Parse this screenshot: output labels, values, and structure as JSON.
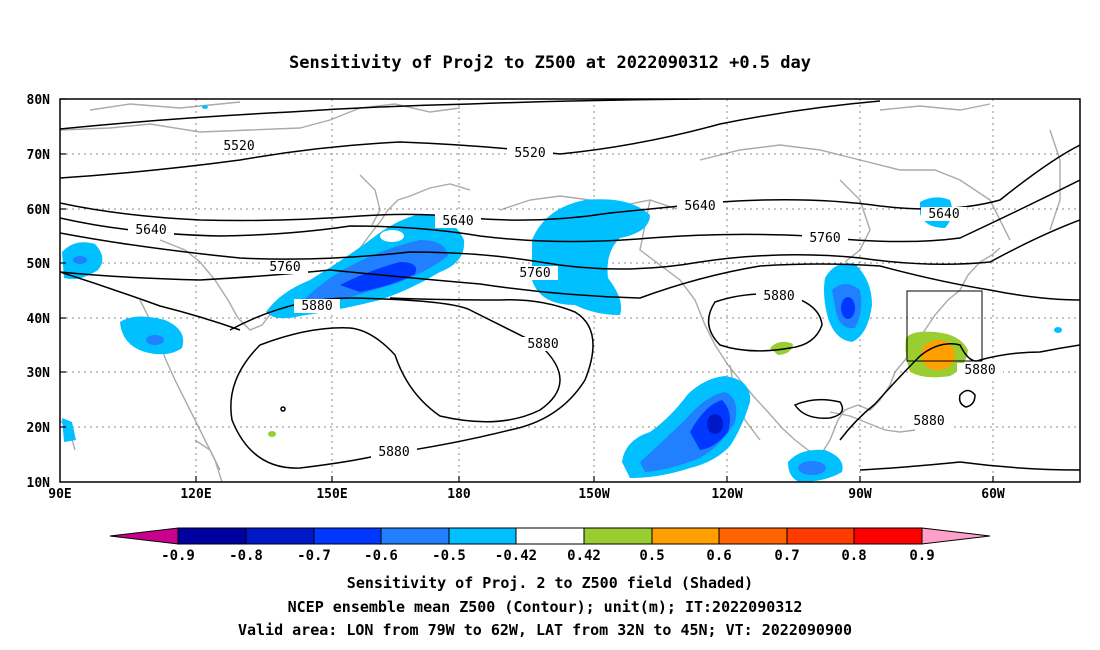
{
  "title": "Sensitivity of Proj2 to Z500 at 2022090312 +0.5 day",
  "lat_ticks": [
    "80N",
    "70N",
    "60N",
    "50N",
    "40N",
    "30N",
    "20N",
    "10N"
  ],
  "lon_ticks": [
    "90E",
    "120E",
    "150E",
    "180",
    "150W",
    "120W",
    "90W",
    "60W"
  ],
  "contour_labels": [
    "5520",
    "5520",
    "5640",
    "5640",
    "5640",
    "5640",
    "5760",
    "5760",
    "5760",
    "5880",
    "5880",
    "5880",
    "5880",
    "5880",
    "5880"
  ],
  "colorbar": {
    "labels": [
      "-0.9",
      "-0.8",
      "-0.7",
      "-0.6",
      "-0.5",
      "-0.42",
      "0.42",
      "0.5",
      "0.6",
      "0.7",
      "0.8",
      "0.9"
    ],
    "colors": [
      "#c8008c",
      "#0000a0",
      "#0018c8",
      "#0038ff",
      "#2080ff",
      "#00c0ff",
      "#ffffff",
      "#9acd32",
      "#ffa000",
      "#ff6400",
      "#ff3c00",
      "#ff0000",
      "#ffa0c8"
    ]
  },
  "captions": [
    "Sensitivity of Proj. 2 to Z500 field (Shaded)",
    "NCEP ensemble mean Z500 (Contour); unit(m); IT:2022090312",
    "Valid area: LON from 79W to 62W, LAT from 32N to 45N; VT: 2022090900"
  ]
}
